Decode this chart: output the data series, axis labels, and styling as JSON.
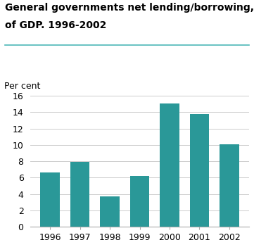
{
  "title_line1": "General governments net lending/borrowing, per cent",
  "title_line2": "of GDP. 1996-2002",
  "ylabel": "Per cent",
  "categories": [
    "1996",
    "1997",
    "1998",
    "1999",
    "2000",
    "2001",
    "2002"
  ],
  "values": [
    6.6,
    7.9,
    3.7,
    6.2,
    15.1,
    13.8,
    10.1
  ],
  "bar_color": "#2a9898",
  "ylim": [
    0,
    16
  ],
  "yticks": [
    0,
    2,
    4,
    6,
    8,
    10,
    12,
    14,
    16
  ],
  "title_fontsize": 10,
  "ylabel_fontsize": 9,
  "tick_fontsize": 9,
  "background_color": "#ffffff",
  "grid_color": "#cccccc",
  "separator_line_color": "#4db8b8",
  "bar_width": 0.65
}
